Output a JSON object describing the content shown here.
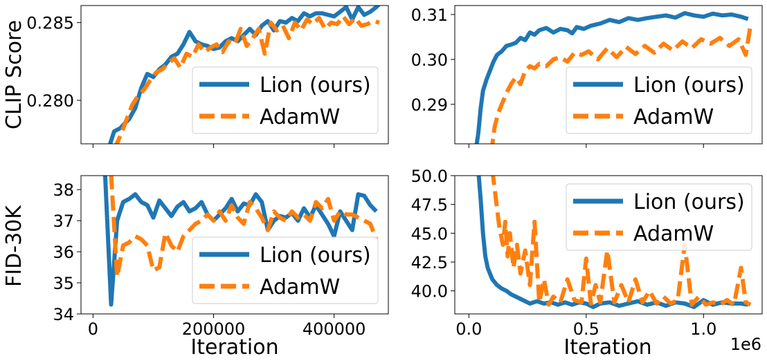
{
  "colors": {
    "lion": "#1f77b4",
    "adamw": "#ff7f0e",
    "legend_border": "#cccccc",
    "axes": "#000000"
  },
  "figure": {
    "row_labels": [
      "CLIP Score",
      "FID-30K"
    ],
    "xlabel": "Iteration",
    "right_offset_text": "1e6"
  },
  "chart_data": [
    {
      "id": "clip_left",
      "type": "line",
      "xlim": [
        -20000,
        490000
      ],
      "ylim": [
        0.2772,
        0.2861
      ],
      "xticks": [
        0,
        200000,
        400000
      ],
      "xtick_labels": [
        "0",
        "200000",
        "400000"
      ],
      "show_xtick_labels": false,
      "yticks": [
        0.28,
        0.285
      ],
      "ytick_labels": [
        "0.280",
        "0.285"
      ],
      "ylabel": "CLIP Score",
      "xlabel": "",
      "legend": "lower right",
      "series": [
        {
          "name": "Lion (ours)",
          "style": "solid",
          "x": [
            25000,
            35000,
            45000,
            60000,
            70000,
            80000,
            90000,
            100000,
            110000,
            120000,
            130000,
            140000,
            150000,
            160000,
            170000,
            180000,
            190000,
            200000,
            210000,
            220000,
            230000,
            240000,
            250000,
            260000,
            270000,
            280000,
            290000,
            300000,
            310000,
            320000,
            330000,
            340000,
            350000,
            360000,
            370000,
            380000,
            390000,
            400000,
            410000,
            420000,
            430000,
            440000,
            450000,
            460000,
            470000,
            475000
          ],
          "y": [
            0.2768,
            0.278,
            0.2782,
            0.2788,
            0.2795,
            0.2808,
            0.2817,
            0.2815,
            0.282,
            0.2823,
            0.2828,
            0.283,
            0.2836,
            0.2844,
            0.2838,
            0.2836,
            0.2835,
            0.2833,
            0.2834,
            0.2838,
            0.284,
            0.2838,
            0.2842,
            0.2846,
            0.2842,
            0.2848,
            0.2851,
            0.2845,
            0.2851,
            0.285,
            0.2853,
            0.2851,
            0.2856,
            0.2854,
            0.2856,
            0.2856,
            0.2855,
            0.2854,
            0.2857,
            0.286,
            0.2852,
            0.286,
            0.2855,
            0.2857,
            0.286,
            0.2862
          ]
        },
        {
          "name": "AdamW",
          "style": "dashed",
          "x": [
            35000,
            45000,
            55000,
            65000,
            75000,
            85000,
            95000,
            105000,
            115000,
            125000,
            135000,
            145000,
            155000,
            165000,
            175000,
            185000,
            195000,
            205000,
            215000,
            225000,
            235000,
            245000,
            255000,
            265000,
            275000,
            285000,
            295000,
            305000,
            315000,
            325000,
            335000,
            345000,
            355000,
            365000,
            375000,
            385000,
            395000,
            405000,
            415000,
            425000,
            435000,
            445000,
            455000,
            465000,
            475000
          ],
          "y": [
            0.2768,
            0.2777,
            0.2787,
            0.2797,
            0.2803,
            0.2807,
            0.2813,
            0.2818,
            0.282,
            0.2824,
            0.2827,
            0.2821,
            0.283,
            0.2828,
            0.2836,
            0.2831,
            0.2834,
            0.2836,
            0.2831,
            0.2838,
            0.2836,
            0.2846,
            0.2835,
            0.284,
            0.2846,
            0.283,
            0.285,
            0.2845,
            0.2848,
            0.284,
            0.285,
            0.2845,
            0.2852,
            0.2849,
            0.2853,
            0.2846,
            0.285,
            0.2849,
            0.2854,
            0.2849,
            0.2853,
            0.2848,
            0.2849,
            0.2851,
            0.285
          ]
        }
      ]
    },
    {
      "id": "clip_right",
      "type": "line",
      "xlim": [
        -60000,
        1250000
      ],
      "ylim": [
        0.2812,
        0.312
      ],
      "xticks": [
        0,
        500000,
        1000000
      ],
      "xtick_labels": [
        "0.0",
        "0.5",
        "1.0"
      ],
      "show_xtick_labels": false,
      "yticks": [
        0.29,
        0.3,
        0.31
      ],
      "ytick_labels": [
        "0.29",
        "0.30",
        "0.31"
      ],
      "ylabel": "",
      "xlabel": "",
      "legend": "lower right",
      "series": [
        {
          "name": "Lion (ours)",
          "style": "solid",
          "x": [
            30000,
            40000,
            50000,
            60000,
            75000,
            90000,
            105000,
            120000,
            140000,
            160000,
            180000,
            200000,
            220000,
            240000,
            260000,
            280000,
            300000,
            330000,
            360000,
            390000,
            420000,
            440000,
            460000,
            490000,
            520000,
            560000,
            600000,
            640000,
            680000,
            720000,
            760000,
            800000,
            840000,
            880000,
            920000,
            960000,
            1000000,
            1040000,
            1080000,
            1120000,
            1160000,
            1190000
          ],
          "y": [
            0.28,
            0.2835,
            0.289,
            0.293,
            0.2955,
            0.2975,
            0.2995,
            0.301,
            0.3018,
            0.303,
            0.3033,
            0.3037,
            0.3048,
            0.3043,
            0.306,
            0.3055,
            0.3065,
            0.307,
            0.306,
            0.3068,
            0.3065,
            0.3058,
            0.3072,
            0.3068,
            0.3075,
            0.308,
            0.3088,
            0.3083,
            0.3092,
            0.3088,
            0.3092,
            0.3095,
            0.3098,
            0.3093,
            0.3103,
            0.3098,
            0.3095,
            0.3102,
            0.3098,
            0.31,
            0.3095,
            0.309
          ]
        },
        {
          "name": "AdamW",
          "style": "dashed",
          "x": [
            90000,
            100000,
            110000,
            125000,
            140000,
            160000,
            180000,
            200000,
            220000,
            240000,
            260000,
            280000,
            300000,
            330000,
            360000,
            390000,
            420000,
            450000,
            480000,
            510000,
            550000,
            590000,
            630000,
            670000,
            710000,
            750000,
            790000,
            830000,
            870000,
            910000,
            950000,
            990000,
            1030000,
            1070000,
            1110000,
            1150000,
            1180000,
            1200000
          ],
          "y": [
            0.279,
            0.281,
            0.285,
            0.288,
            0.29,
            0.2925,
            0.2945,
            0.296,
            0.2945,
            0.2975,
            0.2985,
            0.298,
            0.299,
            0.2985,
            0.3,
            0.3005,
            0.2995,
            0.3015,
            0.301,
            0.3018,
            0.3,
            0.3025,
            0.3005,
            0.3028,
            0.3012,
            0.303,
            0.3015,
            0.3035,
            0.302,
            0.304,
            0.3025,
            0.3045,
            0.3035,
            0.3048,
            0.303,
            0.3045,
            0.301,
            0.3075
          ]
        }
      ]
    },
    {
      "id": "fid_left",
      "type": "line",
      "xlim": [
        -20000,
        490000
      ],
      "ylim": [
        34.0,
        38.45
      ],
      "xticks": [
        0,
        200000,
        400000
      ],
      "xtick_labels": [
        "0",
        "200000",
        "400000"
      ],
      "show_xtick_labels": true,
      "yticks": [
        34,
        35,
        36,
        37,
        38
      ],
      "ytick_labels": [
        "34",
        "35",
        "36",
        "37",
        "38"
      ],
      "ylabel": "FID-30K",
      "xlabel": "Iteration",
      "legend": "lower right",
      "series": [
        {
          "name": "Lion (ours)",
          "style": "solid",
          "x": [
            20000,
            30000,
            40000,
            50000,
            60000,
            70000,
            80000,
            90000,
            100000,
            110000,
            120000,
            130000,
            140000,
            150000,
            160000,
            170000,
            180000,
            190000,
            200000,
            210000,
            220000,
            230000,
            240000,
            250000,
            260000,
            270000,
            280000,
            290000,
            300000,
            310000,
            320000,
            330000,
            340000,
            350000,
            360000,
            370000,
            380000,
            390000,
            400000,
            410000,
            420000,
            430000,
            440000,
            450000,
            460000,
            470000
          ],
          "y": [
            38.5,
            34.3,
            37.0,
            37.6,
            37.7,
            37.85,
            37.6,
            37.5,
            37.1,
            37.65,
            37.4,
            37.15,
            37.45,
            37.6,
            37.3,
            37.4,
            37.6,
            37.2,
            37.0,
            37.2,
            37.4,
            37.7,
            37.3,
            37.55,
            37.5,
            37.85,
            37.6,
            36.7,
            37.0,
            37.15,
            37.1,
            37.25,
            37.0,
            37.4,
            37.1,
            37.5,
            37.2,
            36.9,
            36.5,
            37.3,
            37.0,
            36.7,
            37.85,
            37.8,
            37.5,
            37.3
          ]
        },
        {
          "name": "AdamW",
          "style": "dashed",
          "x": [
            30000,
            40000,
            50000,
            60000,
            70000,
            80000,
            90000,
            100000,
            110000,
            120000,
            130000,
            140000,
            150000,
            160000,
            170000,
            180000,
            190000,
            200000,
            210000,
            220000,
            230000,
            240000,
            250000,
            260000,
            270000,
            280000,
            290000,
            300000,
            310000,
            320000,
            330000,
            340000,
            350000,
            360000,
            370000,
            380000,
            390000,
            400000,
            410000,
            420000,
            430000,
            440000,
            450000,
            460000,
            470000
          ],
          "y": [
            38.5,
            35.2,
            36.2,
            36.3,
            36.5,
            36.4,
            36.2,
            35.4,
            35.5,
            36.6,
            36.2,
            36.0,
            36.5,
            36.7,
            36.9,
            37.0,
            37.2,
            37.0,
            37.3,
            37.0,
            37.5,
            37.1,
            36.9,
            37.6,
            37.4,
            37.1,
            36.7,
            37.3,
            37.1,
            37.0,
            37.3,
            37.1,
            37.2,
            37.0,
            37.6,
            37.4,
            37.7,
            37.0,
            37.3,
            37.2,
            37.2,
            37.1,
            37.0,
            36.9,
            36.4
          ]
        }
      ]
    },
    {
      "id": "fid_right",
      "type": "line",
      "xlim": [
        -60000,
        1250000
      ],
      "ylim": [
        38.0,
        50.0
      ],
      "xticks": [
        0,
        500000,
        1000000
      ],
      "xtick_labels": [
        "0.0",
        "0.5",
        "1.0"
      ],
      "show_xtick_labels": true,
      "yticks": [
        40.0,
        42.5,
        45.0,
        47.5,
        50.0
      ],
      "ytick_labels": [
        "40.0",
        "42.5",
        "45.0",
        "47.5",
        "50.0"
      ],
      "ylabel": "",
      "xlabel": "Iteration",
      "legend": "upper right",
      "series": [
        {
          "name": "Lion (ours)",
          "style": "solid",
          "x": [
            40000,
            50000,
            60000,
            70000,
            80000,
            90000,
            100000,
            120000,
            140000,
            160000,
            180000,
            200000,
            230000,
            260000,
            290000,
            320000,
            350000,
            380000,
            410000,
            440000,
            470000,
            500000,
            530000,
            560000,
            600000,
            640000,
            680000,
            720000,
            760000,
            800000,
            840000,
            880000,
            920000,
            960000,
            1000000,
            1040000,
            1080000,
            1120000,
            1160000,
            1190000
          ],
          "y": [
            50.5,
            48.0,
            45.0,
            43.0,
            42.0,
            41.5,
            41.0,
            40.5,
            40.2,
            40.0,
            39.7,
            39.5,
            39.2,
            38.9,
            39.1,
            38.9,
            39.0,
            38.8,
            39.0,
            38.8,
            39.0,
            38.9,
            38.6,
            38.9,
            39.0,
            38.7,
            38.9,
            39.1,
            38.8,
            39.0,
            38.7,
            39.0,
            38.9,
            38.6,
            39.2,
            38.8,
            39.0,
            38.9,
            38.9,
            38.8
          ]
        },
        {
          "name": "AdamW",
          "style": "dashed",
          "x": [
            100000,
            115000,
            130000,
            145000,
            155000,
            165000,
            175000,
            190000,
            205000,
            220000,
            240000,
            260000,
            280000,
            300000,
            320000,
            340000,
            360000,
            390000,
            420000,
            450000,
            480000,
            500000,
            520000,
            540000,
            560000,
            590000,
            620000,
            650000,
            680000,
            710000,
            740000,
            770000,
            800000,
            830000,
            860000,
            890000,
            920000,
            950000,
            980000,
            1010000,
            1040000,
            1070000,
            1100000,
            1130000,
            1160000,
            1180000,
            1200000
          ],
          "y": [
            50.5,
            48.0,
            45.5,
            44.0,
            46.0,
            43.0,
            45.0,
            42.0,
            44.0,
            41.5,
            43.5,
            40.5,
            46.0,
            39.0,
            41.0,
            38.8,
            39.5,
            39.0,
            41.0,
            39.2,
            39.0,
            42.8,
            38.9,
            40.5,
            39.0,
            43.5,
            39.0,
            40.5,
            39.0,
            41.0,
            39.0,
            40.0,
            38.9,
            39.5,
            38.9,
            39.2,
            44.0,
            38.8,
            39.5,
            38.8,
            39.0,
            38.8,
            39.2,
            38.8,
            42.0,
            39.0,
            38.8
          ]
        }
      ]
    }
  ]
}
